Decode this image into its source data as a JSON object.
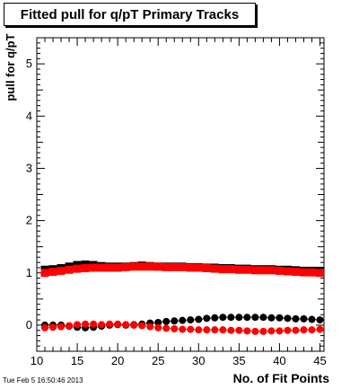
{
  "chart_data": {
    "type": "scatter",
    "title": "Fitted pull for q/pT Primary Tracks",
    "xlabel": "No. of Fit Points",
    "ylabel": "pull for q/pT",
    "xlim": [
      10,
      45.5
    ],
    "ylim": [
      -0.5,
      5.5
    ],
    "xticks": [
      10,
      15,
      20,
      25,
      30,
      35,
      40,
      45
    ],
    "yticks": [
      0,
      1,
      2,
      3,
      4,
      5
    ],
    "grid": false,
    "series": [
      {
        "color": "#000000",
        "marker": "circle",
        "x": [
          11,
          12,
          13,
          14,
          15,
          16,
          17,
          18,
          19,
          20,
          21,
          22,
          23,
          24,
          25,
          26,
          27,
          28,
          29,
          30,
          31,
          32,
          33,
          34,
          35,
          36,
          37,
          38,
          39,
          40,
          41,
          42,
          43,
          44,
          45
        ],
        "y": [
          0.0,
          0.0,
          0.0,
          -0.02,
          -0.04,
          -0.05,
          -0.04,
          -0.02,
          0.0,
          0.01,
          0.0,
          0.01,
          0.02,
          0.04,
          0.05,
          0.07,
          0.08,
          0.09,
          0.1,
          0.11,
          0.13,
          0.14,
          0.15,
          0.15,
          0.15,
          0.15,
          0.15,
          0.15,
          0.14,
          0.14,
          0.13,
          0.12,
          0.12,
          0.11,
          0.1
        ]
      },
      {
        "color": "#ff0000",
        "marker": "circle",
        "x": [
          11,
          12,
          13,
          14,
          15,
          16,
          17,
          18,
          19,
          20,
          21,
          22,
          23,
          24,
          25,
          26,
          27,
          28,
          29,
          30,
          31,
          32,
          33,
          34,
          35,
          36,
          37,
          38,
          39,
          40,
          41,
          42,
          43,
          44,
          45
        ],
        "y": [
          -0.05,
          -0.04,
          -0.03,
          -0.01,
          0.01,
          0.02,
          0.02,
          0.01,
          0.02,
          0.02,
          0.01,
          0.0,
          -0.01,
          -0.03,
          -0.05,
          -0.06,
          -0.07,
          -0.08,
          -0.08,
          -0.09,
          -0.09,
          -0.09,
          -0.09,
          -0.1,
          -0.1,
          -0.11,
          -0.12,
          -0.12,
          -0.11,
          -0.11,
          -0.1,
          -0.1,
          -0.09,
          -0.09,
          -0.08
        ]
      },
      {
        "color": "#000000",
        "marker": "square",
        "x": [
          11,
          12,
          13,
          14,
          15,
          16,
          17,
          18,
          19,
          20,
          21,
          22,
          23,
          24,
          25,
          26,
          27,
          28,
          29,
          30,
          31,
          32,
          33,
          34,
          35,
          36,
          37,
          38,
          39,
          40,
          41,
          42,
          43,
          44,
          45
        ],
        "y": [
          1.06,
          1.07,
          1.09,
          1.12,
          1.15,
          1.16,
          1.15,
          1.13,
          1.12,
          1.12,
          1.12,
          1.13,
          1.14,
          1.13,
          1.12,
          1.12,
          1.12,
          1.12,
          1.11,
          1.11,
          1.1,
          1.1,
          1.09,
          1.09,
          1.08,
          1.08,
          1.07,
          1.07,
          1.07,
          1.06,
          1.06,
          1.05,
          1.04,
          1.04,
          1.04
        ]
      },
      {
        "color": "#ff0000",
        "marker": "square",
        "x": [
          11,
          12,
          13,
          14,
          15,
          16,
          17,
          18,
          19,
          20,
          21,
          22,
          23,
          24,
          25,
          26,
          27,
          28,
          29,
          30,
          31,
          32,
          33,
          34,
          35,
          36,
          37,
          38,
          39,
          40,
          41,
          42,
          43,
          44,
          45
        ],
        "y": [
          1.0,
          1.02,
          1.04,
          1.06,
          1.08,
          1.09,
          1.1,
          1.1,
          1.1,
          1.1,
          1.11,
          1.12,
          1.12,
          1.12,
          1.12,
          1.11,
          1.11,
          1.11,
          1.1,
          1.1,
          1.09,
          1.08,
          1.07,
          1.07,
          1.06,
          1.06,
          1.05,
          1.05,
          1.05,
          1.04,
          1.03,
          1.02,
          1.01,
          1.01,
          1.0
        ]
      }
    ]
  },
  "footer": {
    "timestamp": "Tue Feb  5 16:50:46 2013"
  }
}
